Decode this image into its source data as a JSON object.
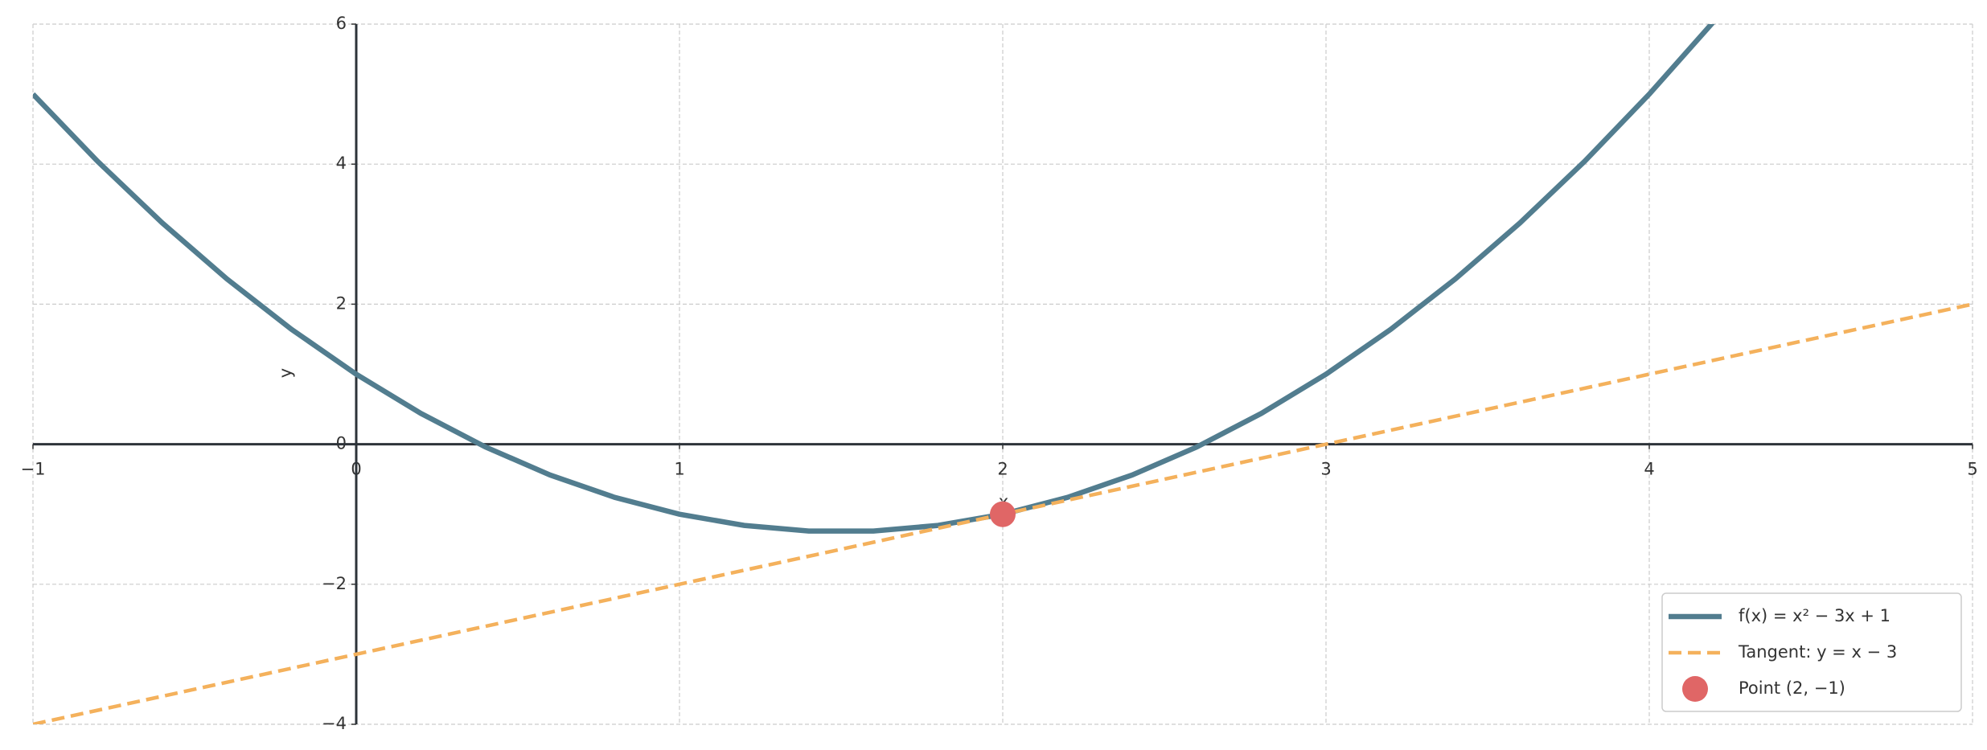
{
  "chart_data": {
    "type": "line",
    "xlim": [
      -1,
      5
    ],
    "ylim": [
      -4,
      6
    ],
    "xticks": [
      {
        "value": -1,
        "label": "−1"
      },
      0,
      1,
      2,
      3,
      4,
      5
    ],
    "yticks": [
      {
        "value": -4,
        "label": "−4"
      },
      {
        "value": -2,
        "label": "−2"
      },
      0,
      2,
      4,
      6
    ],
    "xlabel": "x",
    "ylabel": "y",
    "grid": true,
    "legend": "lower right",
    "series": [
      {
        "name": "f(x) = x² − 3x + 1",
        "color": "#527d8f",
        "style": "solid",
        "x": [
          -1,
          -0.8,
          -0.6,
          -0.4,
          -0.2,
          0,
          0.2,
          0.4,
          0.6,
          0.8,
          1,
          1.2,
          1.4,
          1.6,
          1.8,
          2,
          2.2,
          2.4,
          2.6,
          2.8,
          3,
          3.2,
          3.4,
          3.6,
          3.8,
          4,
          4.2
        ],
        "values": [
          5,
          4.04,
          3.16,
          2.36,
          1.64,
          1,
          0.44,
          -0.04,
          -0.44,
          -0.76,
          -1,
          -1.16,
          -1.24,
          -1.24,
          -1.16,
          -1,
          -0.76,
          -0.44,
          -0.04,
          0.44,
          1,
          1.64,
          2.36,
          3.16,
          4.04,
          5,
          6.04
        ]
      },
      {
        "name": "Tangent: y = x − 3",
        "color": "#f4b15c",
        "style": "dashed",
        "x": [
          -1,
          5
        ],
        "values": [
          -4,
          2
        ]
      },
      {
        "name": "Point (2, −1)",
        "color": "#e06666",
        "style": "marker",
        "x": [
          2
        ],
        "values": [
          -1
        ]
      }
    ]
  }
}
